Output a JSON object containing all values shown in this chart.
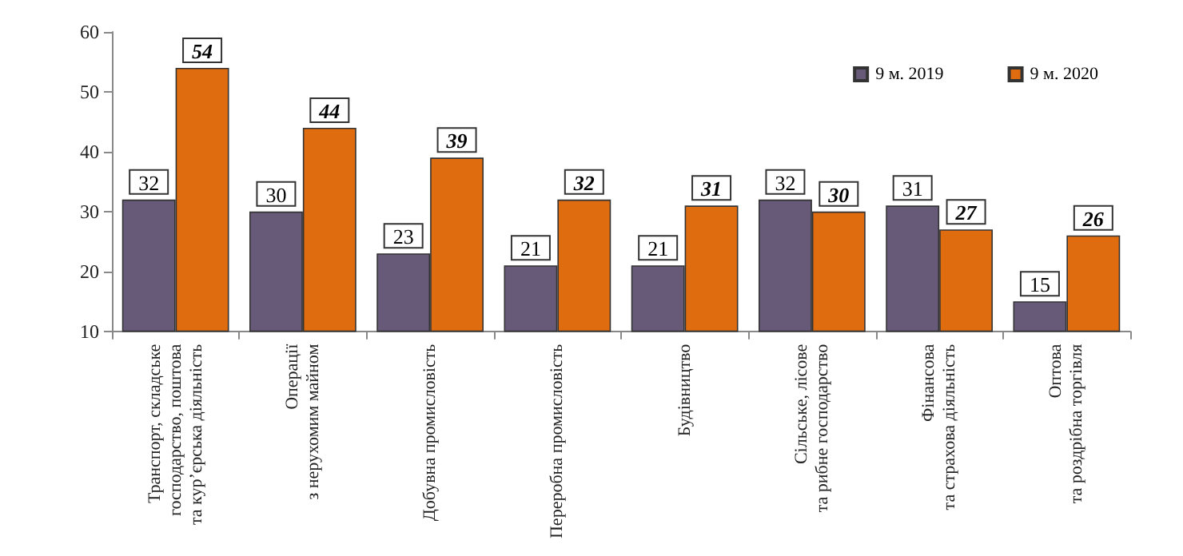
{
  "chart_data": {
    "type": "bar",
    "categories": [
      "Транспорт, складське\nгосподарство, поштова\nта кур’єрська діяльність",
      "Операції\nз нерухомим майном",
      "Добувна промисловість",
      "Переробна промисловість",
      "Будівництво",
      "Сільське, лісове\nта рибне господарство",
      "Фінансова\nта страхова діяльність",
      "Оптова\nта роздрібна торгівля"
    ],
    "series": [
      {
        "name": "9 м. 2019",
        "color": "#675a78",
        "values": [
          32,
          30,
          23,
          21,
          21,
          32,
          31,
          15
        ]
      },
      {
        "name": "9 м. 2020",
        "color": "#e06c10",
        "values": [
          54,
          44,
          39,
          32,
          31,
          30,
          27,
          26
        ]
      }
    ],
    "ylim": [
      10,
      60
    ],
    "yticks": [
      10,
      20,
      30,
      40,
      50,
      60
    ],
    "grid": false,
    "legend": "top right",
    "data_labels": true
  }
}
